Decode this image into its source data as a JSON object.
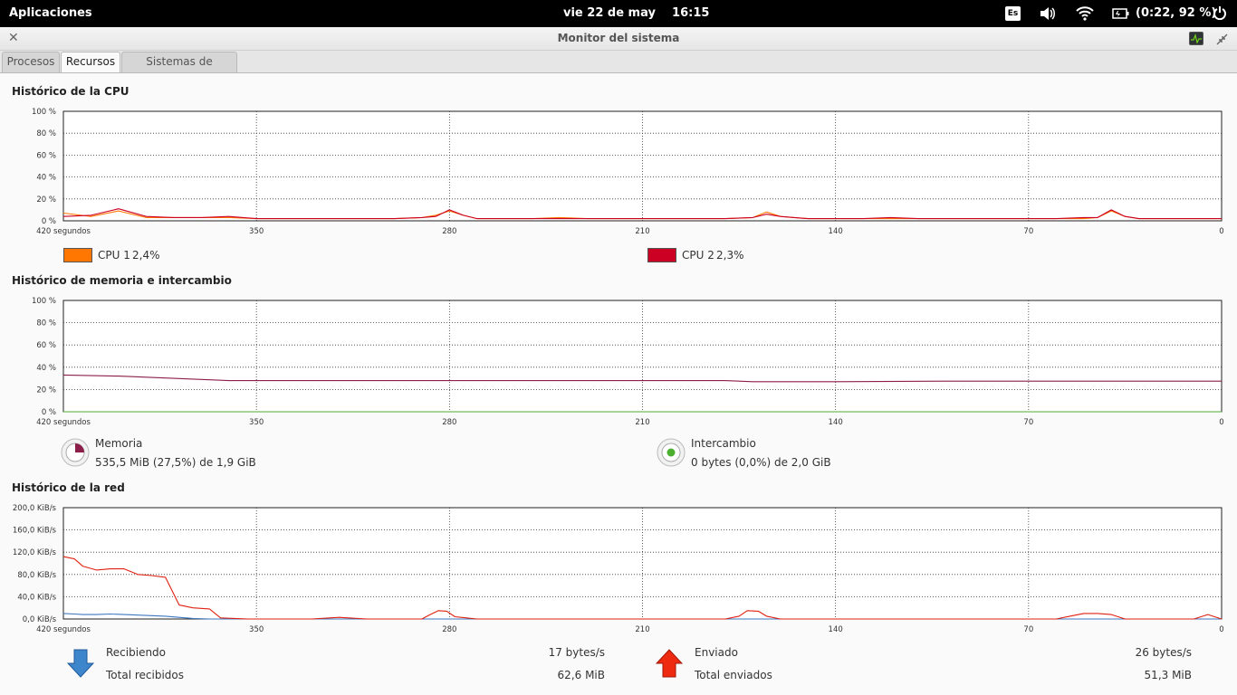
{
  "panel": {
    "applications": "Aplicaciones",
    "datetime": "vie 22 de may    16:15",
    "keyboard": "Es",
    "battery": "(0:22, 92 %)"
  },
  "window": {
    "title": "Monitor del sistema"
  },
  "tabs": [
    {
      "label": "Procesos",
      "active": false
    },
    {
      "label": "Recursos",
      "active": true
    },
    {
      "label": "Sistemas de archivos",
      "active": false
    }
  ],
  "x_axis": {
    "ticks": [
      420,
      350,
      280,
      210,
      140,
      70,
      0
    ],
    "labels": [
      "420 segundos",
      "350",
      "280",
      "210",
      "140",
      "70",
      "0"
    ]
  },
  "cpu": {
    "title": "Histórico de la CPU",
    "y_labels": [
      "100 %",
      "80 %",
      "60 %",
      "40 %",
      "20 %",
      "0 %"
    ],
    "legend": [
      {
        "name": "CPU 1",
        "value": "2,4%",
        "color": "#ff7700"
      },
      {
        "name": "CPU 2",
        "value": "2,3%",
        "color": "#cc0022"
      }
    ]
  },
  "memory": {
    "title": "Histórico de memoria e intercambio",
    "y_labels": [
      "100 %",
      "80 %",
      "60 %",
      "40 %",
      "20 %",
      "0 %"
    ],
    "mem_label": "Memoria",
    "mem_value": "535,5 MiB (27,5%) de 1,9 GiB",
    "swap_label": "Intercambio",
    "swap_value": "0 bytes (0,0%) de 2,0 GiB",
    "mem_color": "#8c1f4a",
    "swap_color": "#4caf30"
  },
  "network": {
    "title": "Histórico de la red",
    "y_labels": [
      "200,0 KiB/s",
      "160,0 KiB/s",
      "120,0 KiB/s",
      "80,0 KiB/s",
      "40,0 KiB/s",
      "0,0 KiB/s"
    ],
    "receiving_label": "Recibiendo",
    "receiving_value": "17 bytes/s",
    "total_received_label": "Total recibidos",
    "total_received_value": "62,6 MiB",
    "sending_label": "Enviado",
    "sending_value": "26 bytes/s",
    "total_sent_label": "Total enviados",
    "total_sent_value": "51,3 MiB",
    "recv_color": "#3d78c0",
    "send_color": "#e02010"
  },
  "chart_data": [
    {
      "type": "line",
      "title": "Histórico de la CPU",
      "xlabel": "segundos",
      "ylabel": "",
      "xlim": [
        420,
        0
      ],
      "ylim": [
        0,
        100
      ],
      "grid": true,
      "legend_placement": "bottom",
      "x": [
        420,
        410,
        400,
        390,
        380,
        370,
        360,
        350,
        340,
        330,
        320,
        310,
        300,
        290,
        285,
        280,
        275,
        270,
        260,
        250,
        240,
        230,
        220,
        210,
        200,
        190,
        180,
        170,
        165,
        160,
        155,
        150,
        140,
        130,
        120,
        110,
        100,
        90,
        80,
        70,
        60,
        50,
        45,
        40,
        35,
        30,
        20,
        10,
        0
      ],
      "series": [
        {
          "name": "CPU 1",
          "values": [
            7,
            4,
            9,
            3,
            3,
            3,
            3,
            2,
            2,
            2,
            2,
            2,
            2,
            3,
            5,
            9,
            5,
            2,
            2,
            2,
            3,
            2,
            2,
            2,
            2,
            2,
            2,
            3,
            8,
            4,
            3,
            2,
            2,
            2,
            2,
            2,
            2,
            2,
            2,
            2,
            2,
            2,
            3,
            9,
            4,
            2,
            2,
            2,
            2
          ]
        },
        {
          "name": "CPU 2",
          "values": [
            4,
            5,
            11,
            4,
            3,
            3,
            4,
            2,
            2,
            2,
            2,
            2,
            2,
            3,
            4,
            10,
            5,
            2,
            2,
            2,
            2,
            2,
            2,
            2,
            2,
            2,
            2,
            3,
            6,
            4,
            3,
            2,
            2,
            2,
            3,
            2,
            2,
            2,
            2,
            2,
            2,
            3,
            3,
            10,
            4,
            2,
            2,
            2,
            2
          ]
        }
      ]
    },
    {
      "type": "line",
      "title": "Histórico de memoria e intercambio",
      "xlabel": "segundos",
      "ylabel": "",
      "xlim": [
        420,
        0
      ],
      "ylim": [
        0,
        100
      ],
      "grid": true,
      "legend_placement": "bottom",
      "x": [
        420,
        400,
        380,
        370,
        360,
        350,
        300,
        250,
        210,
        180,
        170,
        140,
        100,
        50,
        0
      ],
      "series": [
        {
          "name": "Memoria",
          "values": [
            33,
            32,
            30,
            29,
            28,
            28,
            28,
            28,
            28,
            28,
            27,
            27,
            27.5,
            27.5,
            27.5
          ]
        },
        {
          "name": "Intercambio",
          "values": [
            0,
            0,
            0,
            0,
            0,
            0,
            0,
            0,
            0,
            0,
            0,
            0,
            0,
            0,
            0
          ]
        }
      ]
    },
    {
      "type": "line",
      "title": "Histórico de la red",
      "xlabel": "segundos",
      "ylabel": "",
      "xlim": [
        420,
        0
      ],
      "ylim": [
        0,
        200
      ],
      "grid": true,
      "legend_placement": "bottom",
      "x": [
        420,
        416,
        413,
        408,
        403,
        398,
        393,
        388,
        383,
        378,
        373,
        367,
        363,
        358,
        353,
        348,
        340,
        330,
        320,
        310,
        300,
        290,
        287,
        284,
        281,
        278,
        270,
        260,
        250,
        240,
        230,
        220,
        210,
        200,
        190,
        180,
        175,
        172,
        168,
        165,
        160,
        150,
        140,
        130,
        120,
        110,
        100,
        90,
        80,
        70,
        60,
        55,
        50,
        45,
        40,
        35,
        30,
        20,
        10,
        5,
        0
      ],
      "series": [
        {
          "name": "Recibiendo",
          "values": [
            10,
            9,
            8,
            8,
            9,
            8,
            7,
            6,
            5,
            3,
            1,
            0,
            0,
            0,
            0,
            0,
            0,
            0,
            0,
            0,
            0,
            0,
            0,
            0,
            0,
            0,
            0,
            0,
            0,
            0,
            0,
            0,
            0,
            0,
            0,
            0,
            0,
            0,
            0,
            0,
            0,
            0,
            0,
            0,
            0,
            0,
            0,
            0,
            0,
            0,
            0,
            0,
            0,
            0,
            0,
            0,
            0,
            0,
            0,
            0,
            0
          ]
        },
        {
          "name": "Enviado",
          "values": [
            112,
            108,
            95,
            88,
            90,
            90,
            80,
            78,
            75,
            25,
            20,
            18,
            2,
            1,
            0,
            0,
            0,
            0,
            3,
            0,
            0,
            0,
            8,
            15,
            14,
            4,
            0,
            0,
            0,
            0,
            0,
            0,
            0,
            0,
            0,
            0,
            5,
            15,
            14,
            5,
            0,
            0,
            0,
            0,
            0,
            0,
            0,
            0,
            0,
            0,
            0,
            5,
            10,
            10,
            8,
            0,
            0,
            0,
            0,
            8,
            0
          ]
        }
      ]
    }
  ]
}
